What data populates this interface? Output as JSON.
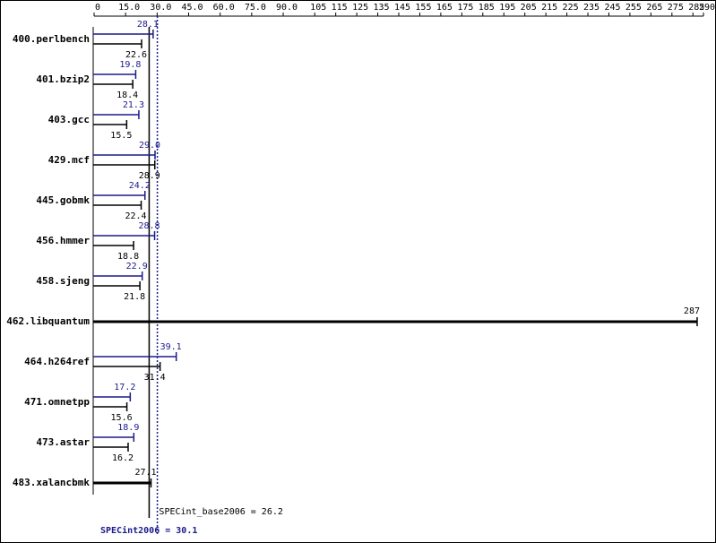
{
  "chart_data": {
    "type": "bar",
    "categories": [
      "400.perlbench",
      "401.bzip2",
      "403.gcc",
      "429.mcf",
      "445.gobmk",
      "456.hmmer",
      "458.sjeng",
      "462.libquantum",
      "464.h264ref",
      "471.omnetpp",
      "473.astar",
      "483.xalancbmk"
    ],
    "series": [
      {
        "color": "#1a1a8c",
        "values": [
          28.1,
          19.8,
          21.3,
          29.0,
          24.2,
          28.8,
          22.9,
          null,
          39.1,
          17.2,
          18.9,
          null
        ],
        "value_labels": [
          "28.1",
          "19.8",
          "21.3",
          "29.0",
          "24.2",
          "28.8",
          "22.9",
          null,
          "39.1",
          "17.2",
          "18.9",
          null
        ]
      },
      {
        "color": "#000000",
        "values": [
          22.6,
          18.4,
          15.5,
          28.9,
          22.4,
          18.8,
          21.8,
          287,
          31.4,
          15.6,
          16.2,
          27.1
        ],
        "value_labels": [
          "22.6",
          "18.4",
          "15.5",
          "28.9",
          "22.4",
          "18.8",
          "21.8",
          "287",
          "31.4",
          "15.6",
          "16.2",
          "27.1"
        ]
      }
    ],
    "xlim": [
      0,
      290
    ],
    "xticks": [
      0,
      {
        "value": 15,
        "label": "15.0"
      },
      {
        "value": 30,
        "label": "30.0"
      },
      {
        "value": 45,
        "label": "45.0"
      },
      {
        "value": 60,
        "label": "60.0"
      },
      {
        "value": 75,
        "label": "75.0"
      },
      {
        "value": 90,
        "label": "90.0"
      },
      105,
      115,
      125,
      135,
      145,
      155,
      165,
      175,
      185,
      195,
      205,
      215,
      225,
      235,
      245,
      255,
      265,
      275,
      285,
      290
    ],
    "reference_lines": [
      {
        "label": "SPECint_base2006 = 26.2",
        "value": 26.2,
        "color": "#000000",
        "dashed": false
      },
      {
        "label": "SPECint2006 = 30.1",
        "value": 30.1,
        "color": "#1a1a8c",
        "dashed": true
      }
    ]
  }
}
